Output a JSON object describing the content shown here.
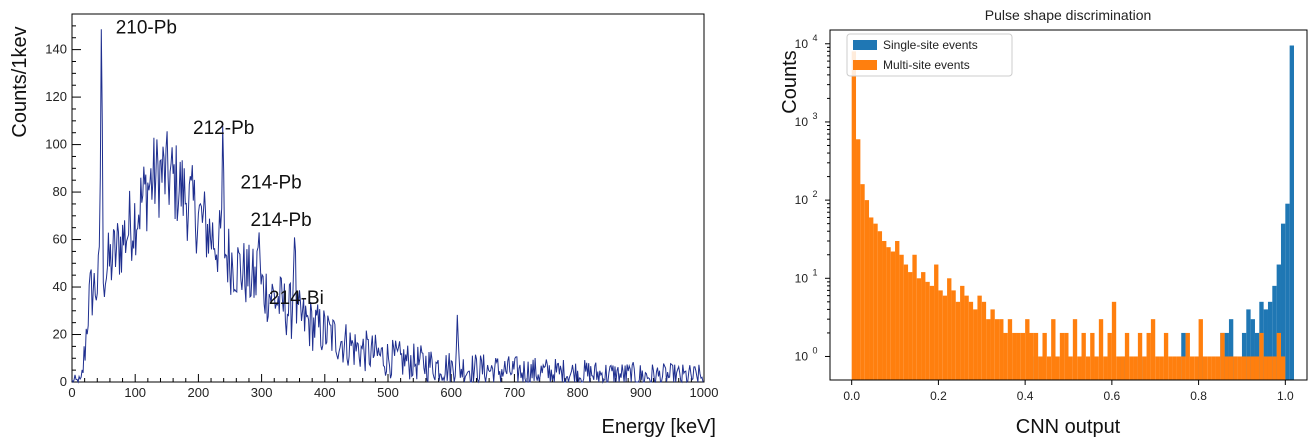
{
  "chart_data": [
    {
      "type": "line",
      "title": "",
      "xlabel": "Energy [keV]",
      "ylabel": "Counts/1kev",
      "xlim": [
        0,
        1000
      ],
      "ylim": [
        0,
        155
      ],
      "xticks": [
        0,
        100,
        200,
        300,
        400,
        500,
        600,
        700,
        800,
        900,
        1000
      ],
      "yticks": [
        0,
        20,
        40,
        60,
        80,
        100,
        120,
        140
      ],
      "grid": false,
      "line_color": "#1f2f8f",
      "annotations": [
        {
          "text": "210-Pb",
          "x": 47,
          "y": 151
        },
        {
          "text": "212-Pb",
          "x": 239,
          "y": 118
        },
        {
          "text": "214-Pb",
          "x": 295,
          "y": 95
        },
        {
          "text": "214-Pb",
          "x": 352,
          "y": 80
        },
        {
          "text": "214-Bi",
          "x": 609,
          "y": 48
        }
      ],
      "peaks": [
        {
          "x": 46.5,
          "y": 151
        },
        {
          "x": 238.6,
          "y": 98
        },
        {
          "x": 295.2,
          "y": 67
        },
        {
          "x": 351.9,
          "y": 69
        },
        {
          "x": 609.3,
          "y": 26
        }
      ],
      "continuum_points": [
        [
          15,
          0
        ],
        [
          20,
          12
        ],
        [
          25,
          30
        ],
        [
          30,
          38
        ],
        [
          40,
          41
        ],
        [
          50,
          45
        ],
        [
          60,
          50
        ],
        [
          70,
          55
        ],
        [
          80,
          60
        ],
        [
          90,
          65
        ],
        [
          100,
          70
        ],
        [
          110,
          76
        ],
        [
          120,
          82
        ],
        [
          130,
          86
        ],
        [
          140,
          88
        ],
        [
          150,
          87
        ],
        [
          160,
          85
        ],
        [
          170,
          82
        ],
        [
          180,
          78
        ],
        [
          190,
          74
        ],
        [
          200,
          70
        ],
        [
          220,
          62
        ],
        [
          250,
          52
        ],
        [
          280,
          44
        ],
        [
          300,
          40
        ],
        [
          330,
          33
        ],
        [
          360,
          27
        ],
        [
          400,
          21
        ],
        [
          450,
          14
        ],
        [
          500,
          10
        ],
        [
          550,
          8
        ],
        [
          600,
          6
        ],
        [
          700,
          4.5
        ],
        [
          800,
          3.5
        ],
        [
          900,
          2.5
        ],
        [
          1000,
          2
        ]
      ]
    },
    {
      "type": "bar",
      "title": "Pulse shape discrimination",
      "xlabel": "CNN output",
      "ylabel": "Counts",
      "yscale": "log",
      "xlim": [
        -0.05,
        1.05
      ],
      "ylim": [
        0.5,
        15000
      ],
      "xticks": [
        0.0,
        0.2,
        0.4,
        0.6,
        0.8,
        1.0
      ],
      "ytick_exponents": [
        0,
        1,
        2,
        3,
        4
      ],
      "grid": false,
      "legend_position": "top-left",
      "bin_edges_start": 0.0,
      "bin_width": 0.01,
      "series": [
        {
          "name": "Single-site events",
          "color": "#1f77b4",
          "values": [
            0,
            0,
            0,
            0,
            0,
            0,
            0,
            0,
            0,
            0,
            0,
            0,
            0,
            0,
            0,
            0,
            0,
            0,
            0,
            0,
            0,
            0,
            0,
            0,
            0,
            0,
            0,
            0,
            0,
            0,
            0,
            0,
            0,
            0,
            0,
            0,
            0,
            0,
            0,
            0,
            0,
            0,
            1,
            0,
            0,
            0,
            0,
            0,
            0,
            0,
            0,
            0,
            0,
            0,
            0,
            0,
            0,
            0,
            0,
            0,
            0,
            0,
            1,
            0,
            0,
            0,
            1,
            0,
            0,
            0,
            0,
            0,
            0,
            0,
            0,
            0,
            2,
            0,
            0,
            0,
            1,
            0,
            0,
            0,
            0,
            2,
            2,
            3,
            1,
            0,
            2,
            4,
            3,
            2,
            5,
            4,
            5,
            8,
            15,
            50,
            90,
            9500
          ]
        },
        {
          "name": "Multi-site events",
          "color": "#ff7f0e",
          "values": [
            8000,
            600,
            160,
            100,
            60,
            50,
            40,
            30,
            25,
            22,
            30,
            20,
            15,
            12,
            20,
            10,
            12,
            9,
            8,
            15,
            7,
            6,
            10,
            7,
            5,
            8,
            6,
            5,
            4,
            6,
            5,
            3,
            4,
            3,
            3,
            2,
            3,
            2,
            2,
            2,
            3,
            2,
            2,
            1,
            2,
            1,
            3,
            1,
            2,
            2,
            1,
            3,
            1,
            2,
            1,
            2,
            1,
            3,
            1,
            2,
            5,
            1,
            1,
            2,
            1,
            1,
            2,
            1,
            2,
            3,
            1,
            1,
            2,
            1,
            1,
            1,
            1,
            2,
            1,
            1,
            3,
            1,
            1,
            1,
            1,
            2,
            1,
            1,
            1,
            1,
            1,
            1,
            1,
            1,
            2,
            1,
            1,
            1,
            2,
            1,
            0
          ]
        }
      ]
    }
  ]
}
